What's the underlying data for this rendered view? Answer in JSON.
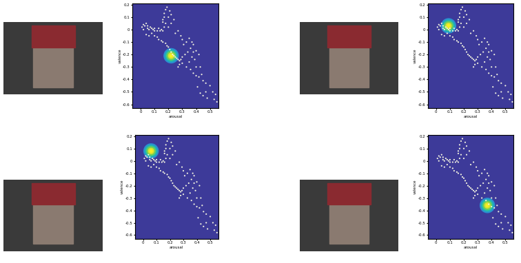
{
  "chart_data": [
    {
      "type": "scatter",
      "xlabel": "arousal",
      "ylabel": "valence",
      "xlim": [
        -0.06,
        0.56
      ],
      "ylim": [
        -0.63,
        0.21
      ],
      "xticks": [
        0,
        0.1,
        0.2,
        0.3,
        0.4,
        0.5
      ],
      "yticks": [
        -0.6,
        -0.5,
        -0.4,
        -0.3,
        -0.2,
        -0.1,
        0,
        0.1,
        0.2
      ],
      "grid": false,
      "color": "#f0f0e0",
      "x": [
        0.01,
        0.02,
        0.02,
        0.03,
        0.04,
        0.05,
        0.05,
        0.06,
        0.07,
        0.08,
        0.09,
        0.1,
        0.1,
        0.12,
        0.13,
        0.14,
        0.15,
        0.16,
        0.17,
        0.16,
        0.17,
        0.17,
        0.18,
        0.16,
        0.18,
        0.2,
        0.22,
        0.2,
        0.04,
        0.06,
        0.08,
        0.1,
        0.12,
        0.13,
        0.15,
        0.16,
        0.18,
        0.19,
        0.2,
        0.21,
        0.22,
        0.23,
        0.24,
        0.25,
        0.26,
        0.27,
        0.28,
        0.29,
        0.3,
        0.28,
        0.27,
        0.3,
        0.25,
        0.27,
        0.29,
        0.3,
        0.31,
        0.33,
        0.35,
        0.37,
        0.38,
        0.36,
        0.34,
        0.32,
        0.38,
        0.4,
        0.42,
        0.39,
        0.37,
        0.35,
        0.33,
        0.36,
        0.38,
        0.4,
        0.42,
        0.44,
        0.43,
        0.4,
        0.45,
        0.47,
        0.5,
        0.41,
        0.43,
        0.45,
        0.47,
        0.52,
        0.54,
        0.53,
        0.55,
        0.48,
        0.22,
        0.24,
        0.21,
        0.19
      ],
      "y": [
        0.02,
        0.04,
        0.0,
        0.03,
        0.05,
        0.03,
        0.01,
        0.0,
        0.02,
        0.01,
        0.0,
        0.01,
        -0.01,
        -0.01,
        0.01,
        -0.01,
        0.0,
        -0.01,
        0.02,
        0.06,
        0.1,
        0.13,
        0.16,
        0.08,
        0.05,
        0.1,
        0.05,
        0.02,
        -0.04,
        -0.05,
        -0.03,
        -0.05,
        -0.06,
        -0.08,
        -0.09,
        -0.1,
        -0.11,
        -0.13,
        -0.14,
        -0.16,
        -0.18,
        -0.2,
        -0.21,
        -0.22,
        -0.23,
        -0.24,
        -0.25,
        -0.24,
        -0.22,
        -0.28,
        -0.3,
        -0.27,
        -0.03,
        -0.01,
        -0.05,
        -0.08,
        -0.12,
        -0.1,
        -0.07,
        -0.1,
        -0.12,
        -0.15,
        -0.18,
        -0.2,
        -0.18,
        -0.17,
        -0.2,
        -0.24,
        -0.22,
        -0.26,
        -0.3,
        -0.32,
        -0.35,
        -0.37,
        -0.38,
        -0.36,
        -0.3,
        -0.3,
        -0.41,
        -0.43,
        -0.45,
        -0.46,
        -0.51,
        -0.53,
        -0.5,
        -0.5,
        -0.52,
        -0.56,
        -0.58,
        -0.55,
        0.12,
        0.08,
        0.15,
        0.18
      ],
      "highlight": [
        0.22,
        -0.21
      ]
    },
    {
      "type": "scatter",
      "xlabel": "arousal",
      "ylabel": "valence",
      "xlim": [
        -0.06,
        0.56
      ],
      "ylim": [
        -0.63,
        0.21
      ],
      "xticks": [
        0,
        0.1,
        0.2,
        0.3,
        0.4,
        0.5
      ],
      "yticks": [
        -0.6,
        -0.5,
        -0.4,
        -0.3,
        -0.2,
        -0.1,
        0,
        0.1,
        0.2
      ],
      "grid": false,
      "color": "#f0f0e0",
      "x": [
        0.01,
        0.02,
        0.02,
        0.03,
        0.04,
        0.05,
        0.05,
        0.06,
        0.07,
        0.08,
        0.09,
        0.1,
        0.1,
        0.12,
        0.13,
        0.14,
        0.15,
        0.16,
        0.17,
        0.16,
        0.17,
        0.17,
        0.18,
        0.16,
        0.18,
        0.2,
        0.22,
        0.2,
        0.04,
        0.06,
        0.08,
        0.1,
        0.12,
        0.13,
        0.15,
        0.16,
        0.18,
        0.19,
        0.2,
        0.21,
        0.22,
        0.23,
        0.24,
        0.25,
        0.26,
        0.27,
        0.28,
        0.29,
        0.3,
        0.28,
        0.27,
        0.3,
        0.25,
        0.27,
        0.29,
        0.3,
        0.31,
        0.33,
        0.35,
        0.37,
        0.38,
        0.36,
        0.34,
        0.32,
        0.38,
        0.4,
        0.42,
        0.39,
        0.37,
        0.35,
        0.33,
        0.36,
        0.38,
        0.4,
        0.42,
        0.44,
        0.43,
        0.4,
        0.45,
        0.47,
        0.5,
        0.41,
        0.43,
        0.45,
        0.47,
        0.52,
        0.54,
        0.53,
        0.55,
        0.48,
        0.22,
        0.24,
        0.21,
        0.19
      ],
      "y": [
        0.02,
        0.04,
        0.0,
        0.03,
        0.05,
        0.03,
        0.01,
        0.0,
        0.02,
        0.01,
        0.0,
        0.01,
        -0.01,
        -0.01,
        0.01,
        -0.01,
        0.0,
        -0.01,
        0.02,
        0.06,
        0.1,
        0.13,
        0.16,
        0.08,
        0.05,
        0.1,
        0.05,
        0.02,
        -0.04,
        -0.05,
        -0.03,
        -0.05,
        -0.06,
        -0.08,
        -0.09,
        -0.1,
        -0.11,
        -0.13,
        -0.14,
        -0.16,
        -0.18,
        -0.2,
        -0.21,
        -0.22,
        -0.23,
        -0.24,
        -0.25,
        -0.24,
        -0.22,
        -0.28,
        -0.3,
        -0.27,
        -0.03,
        -0.01,
        -0.05,
        -0.08,
        -0.12,
        -0.1,
        -0.07,
        -0.1,
        -0.12,
        -0.15,
        -0.18,
        -0.2,
        -0.18,
        -0.17,
        -0.2,
        -0.24,
        -0.22,
        -0.26,
        -0.3,
        -0.32,
        -0.35,
        -0.37,
        -0.38,
        -0.36,
        -0.3,
        -0.3,
        -0.41,
        -0.43,
        -0.45,
        -0.46,
        -0.51,
        -0.53,
        -0.5,
        -0.5,
        -0.52,
        -0.56,
        -0.58,
        -0.55,
        0.12,
        0.08,
        0.15,
        0.18
      ],
      "highlight": [
        0.09,
        0.03
      ]
    },
    {
      "type": "scatter",
      "xlabel": "arousal",
      "ylabel": "valence",
      "xlim": [
        -0.06,
        0.56
      ],
      "ylim": [
        -0.63,
        0.21
      ],
      "xticks": [
        0,
        0.1,
        0.2,
        0.3,
        0.4,
        0.5
      ],
      "yticks": [
        -0.6,
        -0.5,
        -0.4,
        -0.3,
        -0.2,
        -0.1,
        0,
        0.1,
        0.2
      ],
      "grid": false,
      "color": "#f0f0e0",
      "x": [
        0.01,
        0.02,
        0.02,
        0.03,
        0.04,
        0.05,
        0.05,
        0.06,
        0.07,
        0.08,
        0.09,
        0.1,
        0.1,
        0.12,
        0.13,
        0.14,
        0.15,
        0.16,
        0.17,
        0.16,
        0.17,
        0.17,
        0.18,
        0.16,
        0.18,
        0.2,
        0.22,
        0.2,
        0.04,
        0.06,
        0.08,
        0.1,
        0.12,
        0.13,
        0.15,
        0.16,
        0.18,
        0.19,
        0.2,
        0.21,
        0.22,
        0.23,
        0.24,
        0.25,
        0.26,
        0.27,
        0.28,
        0.29,
        0.3,
        0.28,
        0.27,
        0.3,
        0.25,
        0.27,
        0.29,
        0.3,
        0.31,
        0.33,
        0.35,
        0.37,
        0.38,
        0.36,
        0.34,
        0.32,
        0.38,
        0.4,
        0.42,
        0.39,
        0.37,
        0.35,
        0.33,
        0.36,
        0.38,
        0.4,
        0.42,
        0.44,
        0.43,
        0.4,
        0.45,
        0.47,
        0.5,
        0.41,
        0.43,
        0.45,
        0.47,
        0.52,
        0.54,
        0.53,
        0.55,
        0.48,
        0.22,
        0.24,
        0.21,
        0.19
      ],
      "y": [
        0.02,
        0.04,
        0.0,
        0.03,
        0.05,
        0.03,
        0.01,
        0.0,
        0.02,
        0.01,
        0.0,
        0.01,
        -0.01,
        -0.01,
        0.01,
        -0.01,
        0.0,
        -0.01,
        0.02,
        0.06,
        0.1,
        0.13,
        0.16,
        0.08,
        0.05,
        0.1,
        0.05,
        0.02,
        -0.04,
        -0.05,
        -0.03,
        -0.05,
        -0.06,
        -0.08,
        -0.09,
        -0.1,
        -0.11,
        -0.13,
        -0.14,
        -0.16,
        -0.18,
        -0.2,
        -0.21,
        -0.22,
        -0.23,
        -0.24,
        -0.25,
        -0.24,
        -0.22,
        -0.28,
        -0.3,
        -0.27,
        -0.03,
        -0.01,
        -0.05,
        -0.08,
        -0.12,
        -0.1,
        -0.07,
        -0.1,
        -0.12,
        -0.15,
        -0.18,
        -0.2,
        -0.18,
        -0.17,
        -0.2,
        -0.24,
        -0.22,
        -0.26,
        -0.3,
        -0.32,
        -0.35,
        -0.37,
        -0.38,
        -0.36,
        -0.3,
        -0.3,
        -0.41,
        -0.43,
        -0.45,
        -0.46,
        -0.51,
        -0.53,
        -0.5,
        -0.5,
        -0.52,
        -0.56,
        -0.58,
        -0.55,
        0.12,
        0.08,
        0.15,
        0.18
      ],
      "highlight": [
        0.06,
        0.08
      ]
    },
    {
      "type": "scatter",
      "xlabel": "arousal",
      "ylabel": "valence",
      "xlim": [
        -0.06,
        0.56
      ],
      "ylim": [
        -0.63,
        0.21
      ],
      "xticks": [
        0,
        0.1,
        0.2,
        0.3,
        0.4,
        0.5
      ],
      "yticks": [
        -0.6,
        -0.5,
        -0.4,
        -0.3,
        -0.2,
        -0.1,
        0,
        0.1,
        0.2
      ],
      "grid": false,
      "color": "#f0f0e0",
      "x": [
        0.01,
        0.02,
        0.02,
        0.03,
        0.04,
        0.05,
        0.05,
        0.06,
        0.07,
        0.08,
        0.09,
        0.1,
        0.1,
        0.12,
        0.13,
        0.14,
        0.15,
        0.16,
        0.17,
        0.16,
        0.17,
        0.17,
        0.18,
        0.16,
        0.18,
        0.2,
        0.22,
        0.2,
        0.04,
        0.06,
        0.08,
        0.1,
        0.12,
        0.13,
        0.15,
        0.16,
        0.18,
        0.19,
        0.2,
        0.21,
        0.22,
        0.23,
        0.24,
        0.25,
        0.26,
        0.27,
        0.28,
        0.29,
        0.3,
        0.28,
        0.27,
        0.3,
        0.25,
        0.27,
        0.29,
        0.3,
        0.31,
        0.33,
        0.35,
        0.37,
        0.38,
        0.36,
        0.34,
        0.32,
        0.38,
        0.4,
        0.42,
        0.39,
        0.37,
        0.35,
        0.33,
        0.36,
        0.38,
        0.4,
        0.42,
        0.44,
        0.43,
        0.4,
        0.45,
        0.47,
        0.5,
        0.41,
        0.43,
        0.45,
        0.47,
        0.52,
        0.54,
        0.53,
        0.55,
        0.48,
        0.22,
        0.24,
        0.21,
        0.19
      ],
      "y": [
        0.02,
        0.04,
        0.0,
        0.03,
        0.05,
        0.03,
        0.01,
        0.0,
        0.02,
        0.01,
        0.0,
        0.01,
        -0.01,
        -0.01,
        0.01,
        -0.01,
        0.0,
        -0.01,
        0.02,
        0.06,
        0.1,
        0.13,
        0.16,
        0.08,
        0.05,
        0.1,
        0.05,
        0.02,
        -0.04,
        -0.05,
        -0.03,
        -0.05,
        -0.06,
        -0.08,
        -0.09,
        -0.1,
        -0.11,
        -0.13,
        -0.14,
        -0.16,
        -0.18,
        -0.2,
        -0.21,
        -0.22,
        -0.23,
        -0.24,
        -0.25,
        -0.24,
        -0.22,
        -0.28,
        -0.3,
        -0.27,
        -0.03,
        -0.01,
        -0.05,
        -0.08,
        -0.12,
        -0.1,
        -0.07,
        -0.1,
        -0.12,
        -0.15,
        -0.18,
        -0.2,
        -0.18,
        -0.17,
        -0.2,
        -0.24,
        -0.22,
        -0.26,
        -0.3,
        -0.32,
        -0.35,
        -0.37,
        -0.38,
        -0.36,
        -0.3,
        -0.3,
        -0.41,
        -0.43,
        -0.45,
        -0.46,
        -0.51,
        -0.53,
        -0.5,
        -0.5,
        -0.52,
        -0.56,
        -0.58,
        -0.55,
        0.12,
        0.08,
        0.15,
        0.18
      ],
      "highlight": [
        0.37,
        -0.36
      ]
    }
  ]
}
